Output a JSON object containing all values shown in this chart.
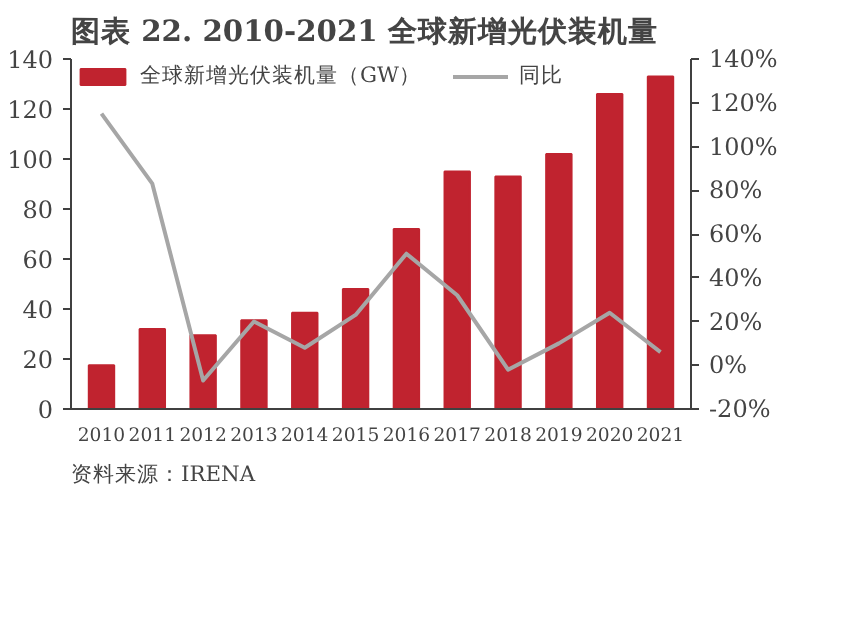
{
  "chart_data": {
    "type": "bar",
    "title": "图表 22. 2010-2021 全球新增光伏装机量",
    "categories": [
      "2010",
      "2011",
      "2012",
      "2013",
      "2014",
      "2015",
      "2016",
      "2017",
      "2018",
      "2019",
      "2020",
      "2021"
    ],
    "series": [
      {
        "name": "全球新增光伏装机量（GW）",
        "color": "#c0232f",
        "values": [
          17.5,
          32,
          29.5,
          35.5,
          38.5,
          48,
          72,
          95,
          93,
          102,
          126,
          133
        ]
      },
      {
        "name": "同比",
        "type": "line",
        "axis": "y2",
        "color": "#a6a6a6",
        "values": [
          115,
          83,
          -7,
          20,
          8,
          23,
          51,
          32,
          -2,
          10,
          24,
          6
        ]
      }
    ],
    "ylim": [
      0,
      140
    ],
    "yticks": [
      0,
      20,
      40,
      60,
      80,
      100,
      120,
      140
    ],
    "y2lim": [
      -20,
      140
    ],
    "y2ticks": [
      {
        "value": -20,
        "label": "-20%"
      },
      {
        "value": 0,
        "label": "0%"
      },
      {
        "value": 20,
        "label": "20%"
      },
      {
        "value": 40,
        "label": "40%"
      },
      {
        "value": 60,
        "label": "60%"
      },
      {
        "value": 80,
        "label": "80%"
      },
      {
        "value": 100,
        "label": "100%"
      },
      {
        "value": 120,
        "label": "120%"
      },
      {
        "value": 140,
        "label": "140%"
      }
    ],
    "grid": false,
    "legend": "top left",
    "line_style": "solid",
    "marker": "none",
    "annotations": [
      "资料来源：IRENA"
    ]
  }
}
